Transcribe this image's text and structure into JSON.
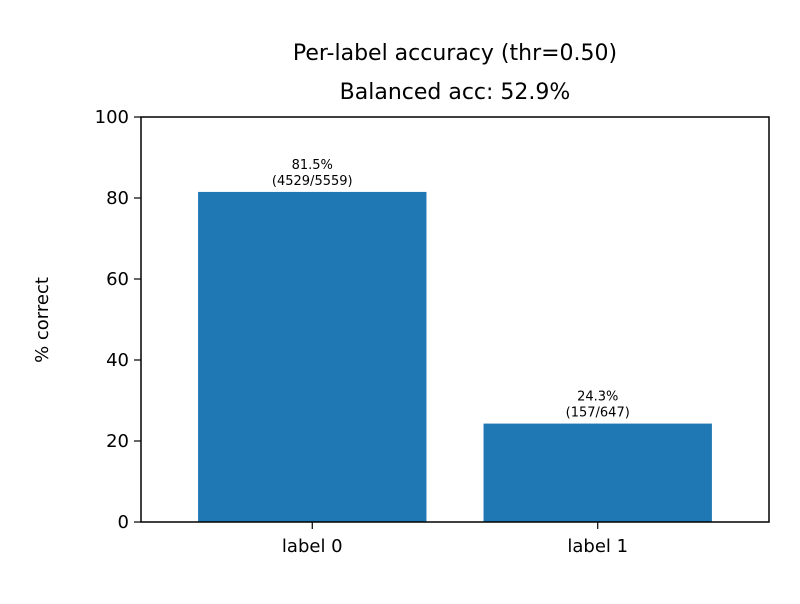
{
  "chart_data": {
    "type": "bar",
    "title": "Per-label accuracy (thr=0.50)",
    "subtitle": "Balanced acc: 52.9%",
    "xlabel": "",
    "ylabel": "% correct",
    "categories": [
      "label 0",
      "label 1"
    ],
    "values": [
      81.5,
      24.3
    ],
    "bar_labels": [
      [
        "81.5%",
        "(4529/5559)"
      ],
      [
        "24.3%",
        "(157/647)"
      ]
    ],
    "ylim": [
      0,
      100
    ],
    "yticks": [
      0,
      20,
      40,
      60,
      80,
      100
    ],
    "grid": false,
    "bar_color": "#1f77b4"
  }
}
